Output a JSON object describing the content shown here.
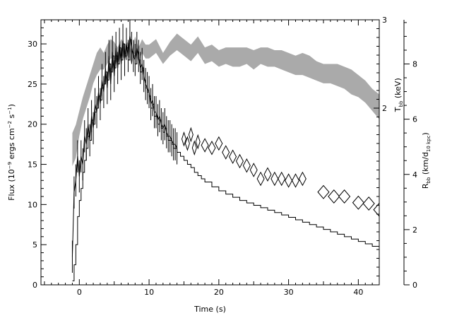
{
  "chart_data": {
    "type": "line",
    "xlabel": "Time (s)",
    "ylabel_left": {
      "text": "Flux (10",
      "exp1": "−9",
      "mid": " ergs cm",
      "exp2": "−2",
      "mid2": " s",
      "exp3": "−1",
      "end": ")"
    },
    "ylabel_right1": {
      "main": "T",
      "sub": "bb",
      "rest": " (keV)"
    },
    "ylabel_right2": {
      "main": "R",
      "sub": "bb",
      "rest": " (km/d",
      "sub2": "10 kpc",
      "end": ")"
    },
    "xlim": [
      -5.5,
      43
    ],
    "ylim_flux": [
      0,
      33
    ],
    "ylim_temp": [
      0,
      3
    ],
    "ylim_radius": [
      0,
      9.6
    ],
    "x_ticks": [
      0,
      10,
      20,
      30,
      40
    ],
    "flux_ticks": [
      0,
      5,
      10,
      15,
      20,
      25,
      30
    ],
    "temp_ticks": [
      2,
      3
    ],
    "radius_ticks": [
      0,
      2,
      4,
      6,
      8
    ],
    "series": [
      {
        "name": "",
        "kind": "flux-histogram",
        "color": "#000000",
        "x": [
          -1.0,
          -0.75,
          -0.5,
          -0.25,
          0.0,
          0.25,
          0.5,
          0.75,
          1.0,
          1.25,
          1.5,
          1.75,
          2.0,
          2.25,
          2.5,
          2.75,
          3.0,
          3.25,
          3.5,
          3.75,
          4.0,
          4.25,
          4.5,
          4.75,
          5.0,
          5.25,
          5.5,
          5.75,
          6.0,
          6.25,
          6.5,
          6.75,
          7.0,
          7.25,
          7.5,
          7.75,
          8.0,
          8.25,
          8.5,
          8.75,
          9.0,
          9.25,
          9.5,
          9.75,
          10.0,
          10.25,
          10.5,
          10.75,
          11.0,
          11.25,
          11.5,
          11.75,
          12.0,
          12.25,
          12.5,
          12.75,
          13.0,
          13.25,
          13.5,
          13.75,
          14.0,
          14.5,
          15.0,
          15.5,
          16.0,
          16.5,
          17.0,
          17.5,
          18.0,
          19.0,
          20.0,
          21.0,
          22.0,
          23.0,
          24.0,
          25.0,
          26.0,
          27.0,
          28.0,
          29.0,
          30.0,
          31.0,
          32.0,
          33.0,
          34.0,
          35.0,
          36.0,
          37.0,
          38.0,
          39.0,
          40.0,
          41.0,
          42.0,
          43.0
        ],
        "y": [
          0.5,
          2.5,
          5.0,
          8.5,
          10.5,
          12.0,
          14.0,
          15.5,
          17.0,
          18.5,
          18.0,
          20.5,
          20.0,
          21.5,
          22.0,
          23.5,
          23.0,
          24.5,
          25.0,
          26.5,
          25.5,
          27.5,
          26.5,
          28.5,
          27.0,
          28.5,
          27.5,
          29.5,
          28.0,
          30.0,
          28.5,
          29.5,
          28.0,
          30.5,
          29.0,
          28.5,
          27.5,
          29.0,
          28.0,
          26.5,
          27.0,
          25.5,
          24.5,
          24.0,
          23.5,
          22.0,
          22.5,
          21.0,
          21.0,
          20.0,
          20.5,
          19.5,
          19.0,
          19.5,
          18.5,
          18.0,
          18.0,
          17.5,
          17.0,
          17.0,
          16.5,
          16.0,
          15.5,
          15.0,
          14.6,
          14.0,
          13.6,
          13.2,
          12.8,
          12.2,
          11.7,
          11.3,
          10.9,
          10.5,
          10.2,
          9.9,
          9.6,
          9.3,
          9.0,
          8.7,
          8.4,
          8.1,
          7.8,
          7.5,
          7.2,
          6.9,
          6.6,
          6.3,
          6.0,
          5.7,
          5.4,
          5.1,
          4.8,
          4.5
        ]
      },
      {
        "name": "",
        "kind": "flux-errorbars",
        "color": "#000000",
        "x": [
          -1.0,
          -0.75,
          -0.5,
          -0.25,
          0.0,
          0.25,
          0.5,
          0.75,
          1.0,
          1.25,
          1.5,
          1.75,
          2.0,
          2.25,
          2.5,
          2.75,
          3.0,
          3.25,
          3.5,
          3.75,
          4.0,
          4.25,
          4.5,
          4.75,
          5.0,
          5.25,
          5.5,
          5.75,
          6.0,
          6.25,
          6.5,
          6.75,
          7.0,
          7.25,
          7.5,
          7.75,
          8.0,
          8.25,
          8.5,
          8.75,
          9.0,
          9.25,
          9.5,
          9.75,
          10.0,
          10.25,
          10.5,
          10.75,
          11.0,
          11.25,
          11.5,
          11.75,
          12.0,
          12.25,
          12.5,
          12.75,
          13.0,
          13.25,
          13.5,
          13.75,
          14.0
        ],
        "y": [
          3.5,
          11.5,
          13.0,
          16.0,
          13.5,
          16.0,
          15.0,
          18.5,
          17.5,
          20.0,
          18.0,
          21.0,
          19.5,
          22.5,
          21.5,
          24.0,
          22.5,
          25.5,
          24.0,
          27.0,
          24.5,
          28.5,
          25.0,
          29.0,
          26.0,
          29.5,
          27.0,
          30.0,
          27.5,
          30.5,
          28.0,
          30.0,
          28.5,
          31.0,
          29.5,
          28.5,
          28.0,
          29.5,
          28.5,
          27.0,
          27.5,
          26.0,
          25.0,
          24.5,
          24.0,
          22.5,
          23.0,
          21.5,
          21.5,
          20.5,
          21.0,
          20.0,
          19.5,
          20.0,
          19.0,
          18.5,
          18.5,
          18.0,
          17.5,
          17.5,
          17.0
        ],
        "err": 2.0
      },
      {
        "name": "",
        "kind": "temperature-diamonds",
        "color": "#000000",
        "x": [
          15.0,
          15.5,
          16.0,
          16.5,
          17.0,
          18.0,
          19.0,
          20.0,
          21.0,
          22.0,
          23.0,
          24.0,
          25.0,
          26.0,
          27.0,
          28.0,
          29.0,
          30.0,
          31.0,
          32.0,
          35.0,
          36.5,
          38.0,
          40.0,
          41.5,
          43.0
        ],
        "y": [
          1.65,
          1.6,
          1.7,
          1.55,
          1.62,
          1.58,
          1.55,
          1.6,
          1.5,
          1.45,
          1.4,
          1.35,
          1.3,
          1.2,
          1.25,
          1.2,
          1.2,
          1.18,
          1.18,
          1.2,
          1.05,
          1.0,
          1.0,
          0.93,
          0.92,
          0.85
        ],
        "xerr": [
          0.3,
          0.3,
          0.3,
          0.3,
          0.3,
          0.5,
          0.5,
          0.5,
          0.5,
          0.5,
          0.5,
          0.5,
          0.5,
          0.5,
          0.5,
          0.5,
          0.5,
          0.5,
          0.5,
          0.5,
          0.8,
          0.8,
          0.8,
          0.8,
          0.8,
          0.8
        ],
        "yerr": [
          0.05,
          0.05,
          0.05,
          0.05,
          0.05,
          0.05,
          0.05,
          0.05,
          0.05,
          0.05,
          0.05,
          0.05,
          0.05,
          0.05,
          0.05,
          0.05,
          0.05,
          0.05,
          0.05,
          0.05,
          0.05,
          0.05,
          0.05,
          0.05,
          0.05,
          0.05
        ]
      },
      {
        "name": "",
        "kind": "radius-band",
        "color": "#aaaaaa",
        "x": [
          -1.0,
          -0.5,
          0.0,
          0.5,
          1.0,
          1.5,
          2.0,
          2.5,
          3.0,
          3.5,
          4.0,
          4.5,
          5.0,
          5.5,
          6.0,
          6.5,
          7.0,
          7.5,
          8.0,
          8.5,
          9.0,
          9.5,
          10.0,
          11.0,
          12.0,
          13.0,
          14.0,
          15.0,
          16.0,
          17.0,
          18.0,
          19.0,
          20.0,
          21.0,
          22.0,
          23.0,
          24.0,
          25.0,
          26.0,
          27.0,
          28.0,
          29.0,
          30.0,
          31.0,
          32.0,
          33.0,
          34.0,
          35.0,
          36.0,
          37.0,
          38.0,
          39.0,
          40.0,
          41.0,
          42.0,
          43.0
        ],
        "upper": [
          5.5,
          5.8,
          6.3,
          6.8,
          7.2,
          7.6,
          8.0,
          8.4,
          8.6,
          8.4,
          8.7,
          8.9,
          8.8,
          8.6,
          8.9,
          8.7,
          8.8,
          8.5,
          9.0,
          8.6,
          8.9,
          8.7,
          8.7,
          8.9,
          8.4,
          8.8,
          9.1,
          8.9,
          8.7,
          9.0,
          8.6,
          8.7,
          8.5,
          8.6,
          8.6,
          8.6,
          8.6,
          8.5,
          8.6,
          8.6,
          8.5,
          8.5,
          8.4,
          8.3,
          8.4,
          8.3,
          8.1,
          8.0,
          8.0,
          8.0,
          7.9,
          7.8,
          7.6,
          7.4,
          7.1,
          6.9
        ],
        "lower": [
          4.3,
          4.6,
          5.4,
          6.0,
          6.4,
          6.8,
          7.3,
          7.6,
          7.8,
          7.8,
          8.0,
          8.2,
          8.2,
          8.0,
          8.3,
          8.2,
          8.3,
          8.0,
          8.4,
          8.1,
          8.4,
          8.2,
          8.2,
          8.4,
          8.0,
          8.3,
          8.5,
          8.3,
          8.1,
          8.4,
          8.0,
          8.1,
          7.9,
          8.0,
          7.9,
          7.9,
          8.0,
          7.8,
          8.0,
          7.9,
          7.9,
          7.8,
          7.7,
          7.6,
          7.6,
          7.5,
          7.4,
          7.3,
          7.3,
          7.2,
          7.1,
          6.9,
          6.8,
          6.6,
          6.3,
          6.0
        ]
      }
    ]
  }
}
